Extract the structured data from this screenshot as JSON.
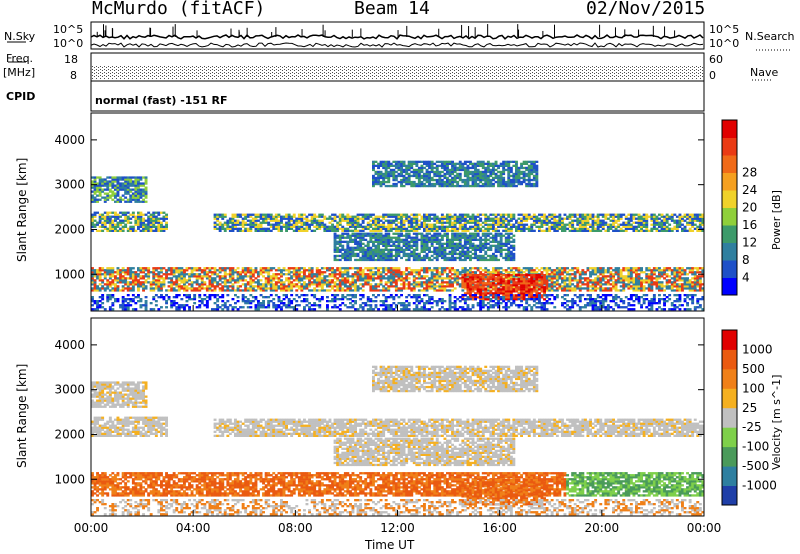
{
  "header": {
    "station": "McMurdo (fitACF)",
    "beam": "Beam 14",
    "date": "02/Nov/2015"
  },
  "param_panel": {
    "left_top": "N.Sky",
    "left_freq_a": "Freq.",
    "left_freq_b": "[MHz]",
    "left_cpid": "CPID",
    "sky_ticks": [
      "10^5",
      "10^0"
    ],
    "freq_ticks": [
      "18",
      "8"
    ],
    "search_ticks": [
      "10^5",
      "10^0"
    ],
    "nave_ticks": [
      "60",
      "0"
    ],
    "right_top": "N.Search",
    "right_mid": "Nave",
    "cpid_text": "normal (fast) -151 RF"
  },
  "chart_data": [
    {
      "type": "heatmap",
      "name": "power",
      "ylabel": "Slant Range [km]",
      "xlabel": "Time UT",
      "yticks": [
        "1000",
        "2000",
        "3000",
        "4000"
      ],
      "xticks": [
        "00:00",
        "04:00",
        "08:00",
        "12:00",
        "16:00",
        "20:00",
        "00:00"
      ],
      "ylim": [
        180,
        4600
      ],
      "xlim_hours": [
        0,
        24
      ],
      "colorbar": {
        "label": "Power [dB]",
        "ticks": [
          "4",
          "8",
          "12",
          "16",
          "20",
          "24",
          "28"
        ],
        "colors": [
          "#0000ff",
          "#1e50c8",
          "#2f7f9f",
          "#3c9a6a",
          "#8fcf3a",
          "#f0d22a",
          "#f5a020",
          "#f06a18",
          "#ea3a14",
          "#e00000"
        ]
      }
    },
    {
      "type": "heatmap",
      "name": "velocity",
      "ylabel": "Slant Range [km]",
      "xlabel": "Time UT",
      "yticks": [
        "1000",
        "2000",
        "3000",
        "4000"
      ],
      "xticks": [
        "00:00",
        "04:00",
        "08:00",
        "12:00",
        "16:00",
        "20:00",
        "00:00"
      ],
      "ylim": [
        180,
        4600
      ],
      "xlim_hours": [
        0,
        24
      ],
      "colorbar": {
        "label": "Velocity [m s^-1]",
        "ticks": [
          "1000",
          "500",
          "100",
          "25",
          "-25",
          "-100",
          "-500",
          "-1000"
        ],
        "colors": [
          "#1f3fa8",
          "#2e7fa0",
          "#4a9a5a",
          "#7ed04a",
          "#c0c0c0",
          "#f5b020",
          "#f08018",
          "#ea5a10",
          "#e00000"
        ]
      }
    }
  ],
  "x_axis_title": "Time UT"
}
